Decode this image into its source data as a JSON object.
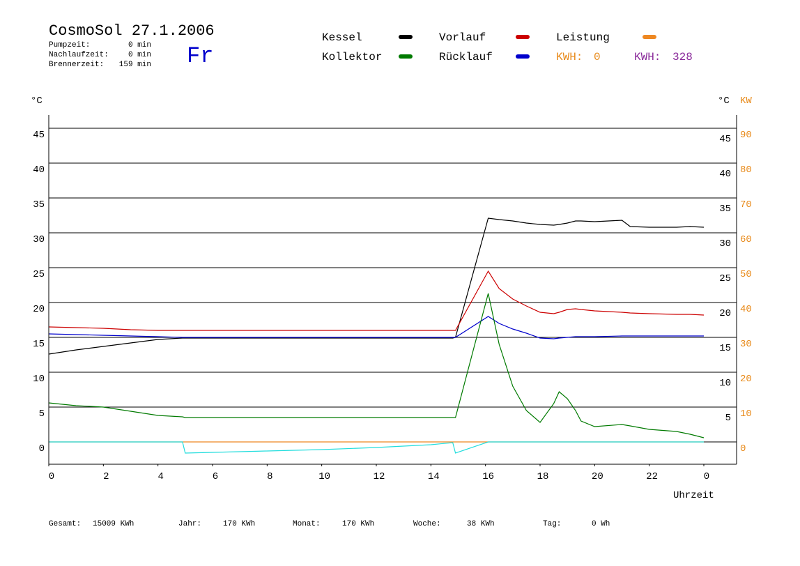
{
  "header": {
    "title": "CosmoSol 27.1.2006",
    "stats": [
      {
        "label": "Pumpzeit:",
        "value": "0 min"
      },
      {
        "label": "Nachlaufzeit:",
        "value": "0 min"
      },
      {
        "label": "Brennerzeit:",
        "value": "159 min"
      }
    ],
    "day": "Fr",
    "kwh": [
      {
        "label": "KWH:",
        "value": "0",
        "color": "#e88a1a"
      },
      {
        "label": "KWH:",
        "value": "328",
        "color": "#8a2a9a"
      }
    ]
  },
  "footer": [
    {
      "label": "Gesamt:",
      "value": "15009 KWh"
    },
    {
      "label": "Jahr:",
      "value": "170 KWh"
    },
    {
      "label": "Monat:",
      "value": "170 KWh"
    },
    {
      "label": "Woche:",
      "value": "38 KWh"
    },
    {
      "label": "Tag:",
      "value": "0 Wh"
    }
  ],
  "chart_data": {
    "type": "line",
    "ylabel": "°C",
    "y2label_left": "°C",
    "y2label": "KW",
    "xlabel": "Uhrzeit",
    "x": [
      0,
      1,
      2,
      3,
      4,
      4.9,
      5,
      6,
      8,
      10,
      12,
      14,
      14.8,
      14.9,
      16.1,
      16.5,
      17,
      17.5,
      18,
      18.5,
      18.7,
      19,
      19.3,
      19.5,
      20,
      21,
      21.3,
      22,
      23,
      23.5,
      24
    ],
    "xlim": [
      0,
      25.2
    ],
    "xticks": [
      0,
      2,
      4,
      6,
      8,
      10,
      12,
      14,
      16,
      18,
      20,
      22,
      {
        "value": 24,
        "label": "0"
      }
    ],
    "ylim": [
      -3.2,
      46.9
    ],
    "yticks": [
      0,
      5,
      10,
      15,
      20,
      25,
      30,
      35,
      40,
      45
    ],
    "y2lim": [
      -6.4,
      93.8
    ],
    "y2ticks": [
      0,
      10,
      20,
      30,
      40,
      50,
      60,
      70,
      80,
      90
    ],
    "grid": true,
    "series": [
      {
        "name": "Kessel",
        "color": "#000000",
        "values": [
          12.6,
          13.2,
          13.7,
          14.2,
          14.7,
          14.9,
          14.9,
          14.9,
          14.9,
          14.9,
          14.9,
          14.9,
          14.9,
          15,
          32.1,
          31.9,
          31.7,
          31.4,
          31.2,
          31.1,
          31.2,
          31.4,
          31.7,
          31.7,
          31.6,
          31.8,
          30.9,
          30.8,
          30.8,
          30.9,
          30.8
        ]
      },
      {
        "name": "Kollektor",
        "color": "#007a00",
        "values": [
          5.6,
          5.2,
          5,
          4.4,
          3.8,
          3.6,
          3.5,
          3.5,
          3.5,
          3.5,
          3.5,
          3.5,
          3.5,
          3.5,
          21.3,
          14,
          8,
          4.5,
          2.8,
          5.5,
          7.2,
          6.2,
          4.5,
          3,
          2.2,
          2.5,
          2.3,
          1.8,
          1.5,
          1.1,
          0.6
        ]
      },
      {
        "name": "Vorlauf",
        "color": "#cc0000",
        "values": [
          16.5,
          16.4,
          16.3,
          16.1,
          16,
          16,
          16,
          16,
          16,
          16,
          16,
          16,
          16,
          16,
          24.5,
          22,
          20.5,
          19.5,
          18.6,
          18.4,
          18.6,
          19,
          19.1,
          19,
          18.8,
          18.6,
          18.5,
          18.4,
          18.3,
          18.3,
          18.2
        ]
      },
      {
        "name": "Rücklauf",
        "color": "#0000cc",
        "values": [
          15.5,
          15.4,
          15.3,
          15.2,
          15.1,
          15,
          15,
          15,
          15,
          15,
          15,
          15,
          15,
          15,
          18,
          17,
          16.2,
          15.6,
          14.9,
          14.8,
          14.9,
          15,
          15.1,
          15.1,
          15.1,
          15.2,
          15.2,
          15.2,
          15.2,
          15.2,
          15.2
        ]
      },
      {
        "name": "Leistung",
        "color": "#ee8822",
        "axis": "y2",
        "values": [
          0,
          0,
          0,
          0,
          0,
          0,
          0,
          0,
          0,
          0,
          0,
          0,
          0,
          0,
          0,
          0,
          0,
          0,
          0,
          0,
          0,
          0,
          0,
          0,
          0,
          0,
          0,
          0,
          0,
          0,
          0
        ]
      },
      {
        "color": "#22dddd",
        "values": [
          0,
          0,
          0,
          0,
          0,
          0,
          -1.6,
          -1.5,
          -1.3,
          -1.1,
          -0.8,
          -0.4,
          -0.1,
          -1.6,
          0,
          0,
          0,
          0,
          0,
          0,
          0,
          0,
          0,
          0,
          0,
          0,
          0,
          0,
          0,
          0,
          0
        ]
      }
    ]
  }
}
